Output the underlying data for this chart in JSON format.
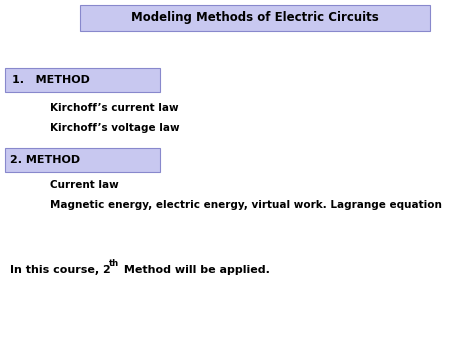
{
  "title": "Modeling Methods of Electric Circuits",
  "title_bg": "#c8c8f0",
  "title_border": "#8888cc",
  "method1_label": "1.   METHOD",
  "method1_bg": "#c8c8f0",
  "method1_items": [
    "Kirchoff’s current law",
    "Kirchoff’s voltage law"
  ],
  "method2_label": "2. METHOD",
  "method2_bg": "#c8c8f0",
  "method2_items": [
    "Current law",
    "Magnetic energy, electric energy, virtual work. Lagrange equation"
  ],
  "bottom_text_pre": "In this course, 2",
  "bottom_text_super": "th",
  "bottom_text_post": " Method will be applied.",
  "bg_color": "#ffffff",
  "text_color": "#000000"
}
